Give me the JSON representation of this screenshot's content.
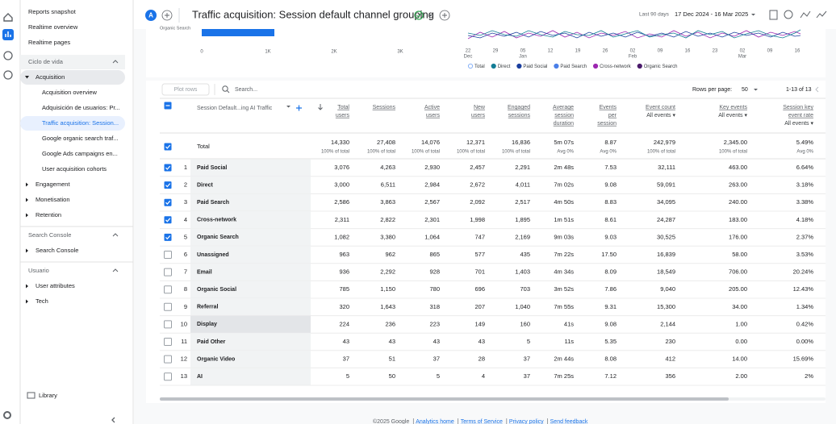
{
  "sidebar": {
    "items": [
      "Reports snapshot",
      "Realtime overview",
      "Realtime pages",
      "Ciclo de vida",
      "Acquisition",
      "Acquisition overview",
      "Adquisición de usuarios: Pr...",
      "Traffic acquisition: Session...",
      "Google organic search traf...",
      "Google Ads campaigns en...",
      "User acquisition cohorts",
      "Engagement",
      "Monetisation",
      "Retention",
      "Search Console",
      "Search Console",
      "Usuario",
      "User attributes",
      "Tech"
    ],
    "library": "Library"
  },
  "header": {
    "avatar": "A",
    "title": "Traffic acquisition: Session default channel grouping",
    "date_label": "Last 90 days",
    "date_range": "17 Dec 2024 - 16 Mar 2025"
  },
  "bar_chart": {
    "label": "Organic Search",
    "x_labels": [
      "0",
      "1K",
      "2K",
      "3K"
    ]
  },
  "line_chart": {
    "x_labels": [
      {
        "day": "22",
        "month": "Dec"
      },
      {
        "day": "29"
      },
      {
        "day": "05",
        "month": "Jan"
      },
      {
        "day": "12"
      },
      {
        "day": "19"
      },
      {
        "day": "26"
      },
      {
        "day": "02",
        "month": "Feb"
      },
      {
        "day": "09"
      },
      {
        "day": "16"
      },
      {
        "day": "23"
      },
      {
        "day": "02",
        "month": "Mar"
      },
      {
        "day": "09"
      },
      {
        "day": "16"
      }
    ],
    "legend": [
      {
        "name": "Total",
        "color": "#8ab4f8"
      },
      {
        "name": "Direct",
        "color": "#137d96"
      },
      {
        "name": "Paid Social",
        "color": "#1a3f9e"
      },
      {
        "name": "Paid Search",
        "color": "#4a7fe8"
      },
      {
        "name": "Cross-network",
        "color": "#9c27b0"
      },
      {
        "name": "Organic Search",
        "color": "#4a1a6b"
      }
    ]
  },
  "toolbar": {
    "plot_rows": "Plot rows",
    "search": "Search...",
    "rows_per_page": "Rows per page:",
    "page_size": "50",
    "range": "1-13 of 13"
  },
  "table": {
    "dimension": "Session Default...ing AI Traffic",
    "columns": [
      [
        "Total",
        "users"
      ],
      [
        "Sessions"
      ],
      [
        "Active",
        "users"
      ],
      [
        "New",
        "users"
      ],
      [
        "Engaged",
        "sessions"
      ],
      [
        "Average",
        "session",
        "duration"
      ],
      [
        "Events",
        "per",
        "session"
      ],
      [
        "Event count",
        "All events ▾"
      ],
      [
        "Key events",
        "All events ▾"
      ],
      [
        "Session key",
        "event rate",
        "All events ▾"
      ]
    ],
    "total_label": "Total",
    "totals": [
      "14,330",
      "27,408",
      "14,076",
      "12,371",
      "16,836",
      "5m 07s",
      "8.87",
      "242,979",
      "2,345.00",
      "5.49%"
    ],
    "total_notes": [
      "100% of total",
      "100% of total",
      "100% of total",
      "100% of total",
      "100% of total",
      "Avg 0%",
      "Avg 0%",
      "100% of total",
      "100% of total",
      "Avg 0%"
    ],
    "rows": [
      {
        "index": "1",
        "name": "Paid Social",
        "checked": true,
        "cells": [
          "3,076",
          "4,263",
          "2,930",
          "2,457",
          "2,291",
          "2m 48s",
          "7.53",
          "32,111",
          "463.00",
          "6.64%"
        ]
      },
      {
        "index": "2",
        "name": "Direct",
        "checked": true,
        "cells": [
          "3,000",
          "6,511",
          "2,984",
          "2,672",
          "4,011",
          "7m 02s",
          "9.08",
          "59,091",
          "263.00",
          "3.18%"
        ]
      },
      {
        "index": "3",
        "name": "Paid Search",
        "checked": true,
        "cells": [
          "2,586",
          "3,863",
          "2,567",
          "2,092",
          "2,517",
          "4m 50s",
          "8.83",
          "34,095",
          "240.00",
          "3.38%"
        ]
      },
      {
        "index": "4",
        "name": "Cross-network",
        "checked": true,
        "cells": [
          "2,311",
          "2,822",
          "2,301",
          "1,998",
          "1,895",
          "1m 51s",
          "8.61",
          "24,287",
          "183.00",
          "4.18%"
        ]
      },
      {
        "index": "5",
        "name": "Organic Search",
        "checked": true,
        "cells": [
          "1,082",
          "3,380",
          "1,064",
          "747",
          "2,169",
          "9m 03s",
          "9.03",
          "30,525",
          "176.00",
          "2.37%"
        ]
      },
      {
        "index": "6",
        "name": "Unassigned",
        "checked": false,
        "cells": [
          "963",
          "962",
          "865",
          "577",
          "435",
          "7m 22s",
          "17.50",
          "16,839",
          "58.00",
          "3.53%"
        ]
      },
      {
        "index": "7",
        "name": "Email",
        "checked": false,
        "cells": [
          "936",
          "2,292",
          "928",
          "701",
          "1,403",
          "4m 34s",
          "8.09",
          "18,549",
          "706.00",
          "20.24%"
        ]
      },
      {
        "index": "8",
        "name": "Organic Social",
        "checked": false,
        "cells": [
          "785",
          "1,150",
          "780",
          "696",
          "703",
          "3m 52s",
          "7.86",
          "9,040",
          "205.00",
          "12.43%"
        ]
      },
      {
        "index": "9",
        "name": "Referral",
        "checked": false,
        "cells": [
          "320",
          "1,643",
          "318",
          "207",
          "1,040",
          "7m 55s",
          "9.31",
          "15,300",
          "34.00",
          "1.34%"
        ]
      },
      {
        "index": "10",
        "name": "Display",
        "checked": false,
        "cells": [
          "224",
          "236",
          "223",
          "149",
          "160",
          "41s",
          "9.08",
          "2,144",
          "1.00",
          "0.42%"
        ]
      },
      {
        "index": "11",
        "name": "Paid Other",
        "checked": false,
        "cells": [
          "43",
          "43",
          "43",
          "43",
          "5",
          "11s",
          "5.35",
          "230",
          "0.00",
          "0.00%"
        ]
      },
      {
        "index": "12",
        "name": "Organic Video",
        "checked": false,
        "cells": [
          "37",
          "51",
          "37",
          "28",
          "37",
          "2m 44s",
          "8.08",
          "412",
          "14.00",
          "15.69%"
        ]
      },
      {
        "index": "13",
        "name": "AI",
        "checked": false,
        "cells": [
          "5",
          "50",
          "5",
          "4",
          "37",
          "7m 25s",
          "7.12",
          "356",
          "2.00",
          "2%"
        ]
      }
    ]
  },
  "footer": [
    "©2025 Google",
    "Analytics home",
    "Terms of Service",
    "Privacy policy",
    "Send feedback"
  ]
}
